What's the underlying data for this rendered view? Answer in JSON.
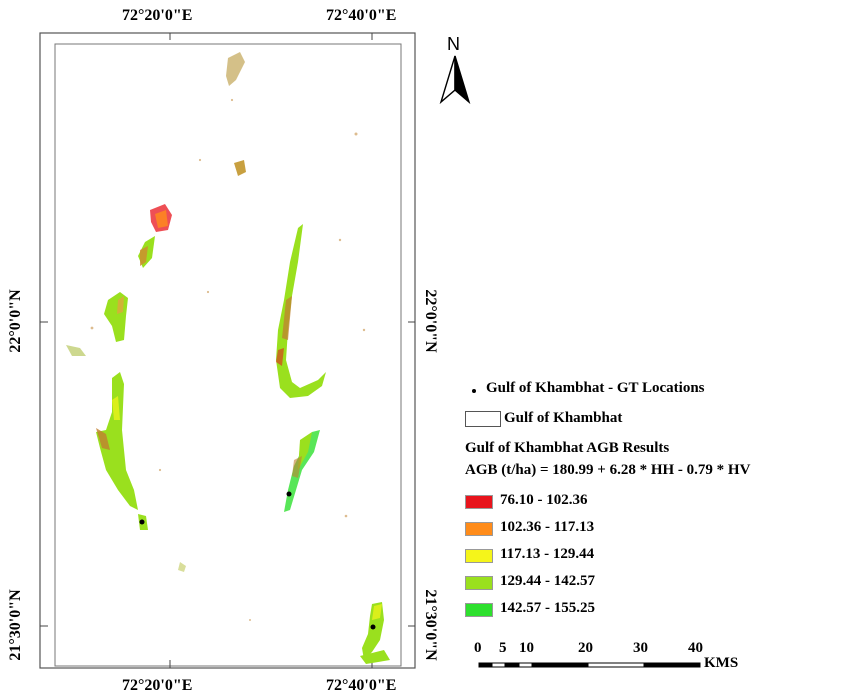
{
  "map": {
    "graticule": {
      "top": [
        "72°20'0\"E",
        "72°40'0\"E"
      ],
      "bottom": [
        "72°20'0\"E",
        "72°40'0\"E"
      ],
      "left": [
        "22°0'0\"N",
        "21°30'0\"N"
      ],
      "right": [
        "22°0'0\"N",
        "21°30'0\"N"
      ]
    },
    "north_label": "N"
  },
  "legend": {
    "gt_locations": "Gulf of Khambhat - GT Locations",
    "boundary": "Gulf of Khambhat",
    "title": "Gulf of Khambhat AGB Results",
    "equation": "AGB (t/ha) = 180.99 + 6.28 * HH - 0.79 * HV",
    "classes": [
      {
        "label": "76.10 - 102.36",
        "color": "#e8141c"
      },
      {
        "label": "102.36 - 117.13",
        "color": "#ff8c1a"
      },
      {
        "label": "117.13 - 129.44",
        "color": "#f5f51a"
      },
      {
        "label": "129.44 - 142.57",
        "color": "#9ae01e"
      },
      {
        "label": "142.57 - 155.25",
        "color": "#2ee02e"
      }
    ]
  },
  "scalebar": {
    "ticks": [
      "0",
      "5",
      "10",
      "20",
      "30",
      "40"
    ],
    "unit": "KMS"
  }
}
